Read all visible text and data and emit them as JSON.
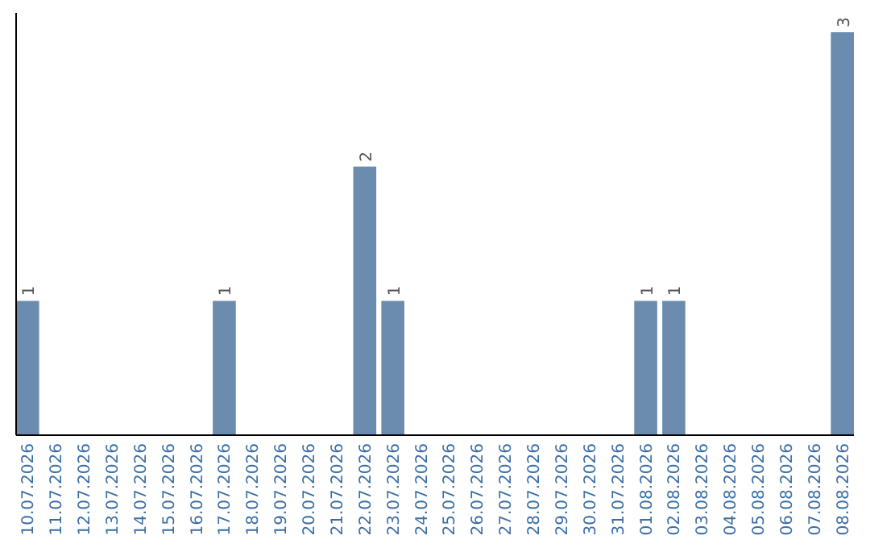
{
  "chart_data": {
    "type": "bar",
    "categories": [
      "10.07.2026",
      "11.07.2026",
      "12.07.2026",
      "13.07.2026",
      "14.07.2026",
      "15.07.2026",
      "16.07.2026",
      "17.07.2026",
      "18.07.2026",
      "19.07.2026",
      "20.07.2026",
      "21.07.2026",
      "22.07.2026",
      "23.07.2026",
      "24.07.2026",
      "25.07.2026",
      "26.07.2026",
      "27.07.2026",
      "28.07.2026",
      "29.07.2026",
      "30.07.2026",
      "31.07.2026",
      "01.08.2026",
      "02.08.2026",
      "03.08.2026",
      "04.08.2026",
      "05.08.2026",
      "06.08.2026",
      "07.08.2026",
      "08.08.2026"
    ],
    "values": [
      1,
      0,
      0,
      0,
      0,
      0,
      0,
      1,
      0,
      0,
      0,
      0,
      2,
      1,
      0,
      0,
      0,
      0,
      0,
      0,
      0,
      0,
      1,
      1,
      0,
      0,
      0,
      0,
      0,
      3
    ],
    "value_labels": [
      "1",
      null,
      null,
      null,
      null,
      null,
      null,
      "1",
      null,
      null,
      null,
      null,
      "2",
      "1",
      null,
      null,
      null,
      null,
      null,
      null,
      null,
      null,
      "1",
      "1",
      null,
      null,
      null,
      null,
      null,
      "3"
    ],
    "color": "#6b8cae",
    "tick_labels": "x"
  }
}
